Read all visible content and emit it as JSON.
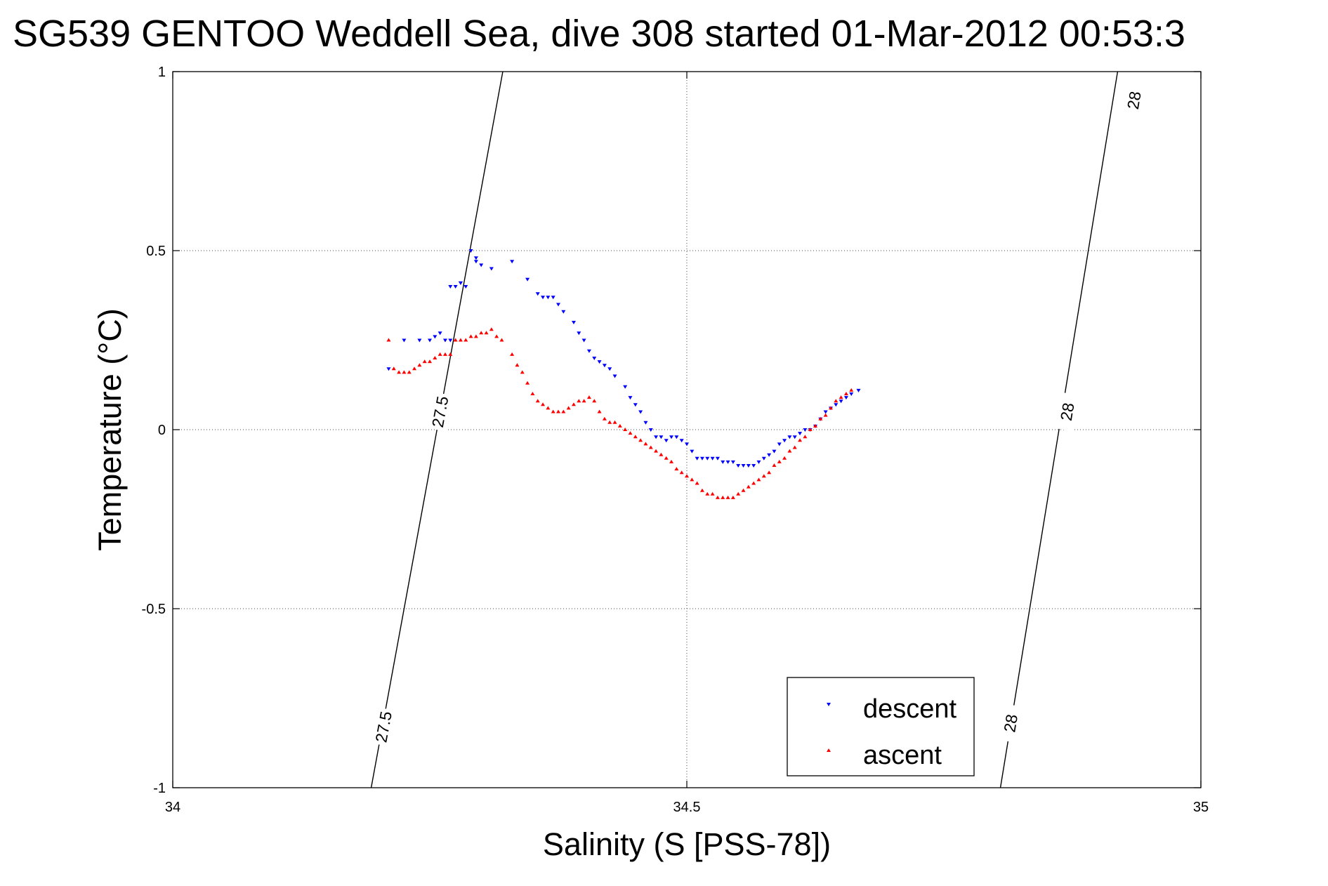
{
  "chart_data": {
    "type": "scatter",
    "title": "SG539 GENTOO Weddell Sea, dive 308 started 01-Mar-2012 00:53:3",
    "xlabel": "Salinity (S [PSS-78])",
    "ylabel": "Temperature (°C)",
    "xlim": [
      34,
      35
    ],
    "ylim": [
      -1,
      1
    ],
    "x_ticks": [
      34,
      34.5,
      35
    ],
    "x_tick_labels": [
      "34",
      "34.5",
      "35"
    ],
    "y_ticks": [
      1,
      0.5,
      0,
      -0.5,
      -1
    ],
    "y_tick_labels": [
      "1",
      "0.5",
      "0",
      "-0.5",
      "-1"
    ],
    "grid": true,
    "legend_position": "bottom-right",
    "legend": [
      "descent",
      "ascent"
    ],
    "isopycnals": [
      {
        "label": "27.5",
        "x_bottom": 34.193,
        "x_top": 34.321,
        "label_positions": [
          [
            34.26,
            0.05
          ],
          [
            34.205,
            -0.83
          ]
        ]
      },
      {
        "label": "28",
        "x_bottom": 34.805,
        "x_top": 34.919,
        "label_positions": [
          [
            34.935,
            0.92
          ],
          [
            34.87,
            0.05
          ],
          [
            34.815,
            -0.82
          ]
        ]
      }
    ],
    "series": [
      {
        "name": "descent",
        "color": "#0000ff",
        "marker": "triangle-down",
        "x": [
          34.21,
          34.225,
          34.24,
          34.25,
          34.255,
          34.26,
          34.265,
          34.27,
          34.275,
          34.28,
          34.285,
          34.29,
          34.295,
          34.27,
          34.28,
          34.295,
          34.3,
          34.31,
          34.33,
          34.345,
          34.355,
          34.36,
          34.365,
          34.37,
          34.375,
          34.38,
          34.39,
          34.395,
          34.4,
          34.405,
          34.41,
          34.415,
          34.42,
          34.425,
          34.43,
          34.44,
          34.445,
          34.45,
          34.455,
          34.46,
          34.465,
          34.47,
          34.475,
          34.48,
          34.485,
          34.49,
          34.495,
          34.5,
          34.505,
          34.51,
          34.515,
          34.52,
          34.525,
          34.53,
          34.535,
          34.54,
          34.545,
          34.55,
          34.555,
          34.56,
          34.565,
          34.57,
          34.575,
          34.58,
          34.585,
          34.59,
          34.595,
          34.6,
          34.605,
          34.61,
          34.615,
          34.62,
          34.625,
          34.63,
          34.635,
          34.64,
          34.645,
          34.65,
          34.655,
          34.66,
          34.667
        ],
        "y": [
          0.17,
          0.25,
          0.25,
          0.25,
          0.26,
          0.27,
          0.25,
          0.25,
          0.4,
          0.41,
          0.4,
          0.5,
          0.48,
          0.4,
          0.41,
          0.47,
          0.46,
          0.45,
          0.47,
          0.42,
          0.38,
          0.37,
          0.37,
          0.37,
          0.35,
          0.33,
          0.3,
          0.27,
          0.25,
          0.22,
          0.2,
          0.19,
          0.18,
          0.17,
          0.15,
          0.12,
          0.09,
          0.07,
          0.05,
          0.02,
          0.0,
          -0.02,
          -0.02,
          -0.03,
          -0.02,
          -0.02,
          -0.03,
          -0.04,
          -0.06,
          -0.08,
          -0.08,
          -0.08,
          -0.08,
          -0.08,
          -0.09,
          -0.09,
          -0.09,
          -0.1,
          -0.1,
          -0.1,
          -0.1,
          -0.09,
          -0.08,
          -0.07,
          -0.06,
          -0.04,
          -0.03,
          -0.02,
          -0.02,
          -0.01,
          0.0,
          0.0,
          0.01,
          0.03,
          0.05,
          0.06,
          0.07,
          0.08,
          0.09,
          0.1,
          0.11
        ]
      },
      {
        "name": "ascent",
        "color": "#ff0000",
        "marker": "triangle-up",
        "x": [
          34.21,
          34.215,
          34.22,
          34.225,
          34.23,
          34.235,
          34.24,
          34.245,
          34.25,
          34.255,
          34.26,
          34.265,
          34.27,
          34.275,
          34.28,
          34.285,
          34.29,
          34.295,
          34.3,
          34.305,
          34.31,
          34.315,
          34.32,
          34.33,
          34.335,
          34.34,
          34.345,
          34.35,
          34.355,
          34.36,
          34.365,
          34.37,
          34.375,
          34.38,
          34.385,
          34.39,
          34.395,
          34.4,
          34.405,
          34.41,
          34.415,
          34.42,
          34.425,
          34.43,
          34.435,
          34.44,
          34.445,
          34.45,
          34.455,
          34.46,
          34.465,
          34.47,
          34.475,
          34.48,
          34.485,
          34.49,
          34.495,
          34.5,
          34.505,
          34.51,
          34.515,
          34.52,
          34.525,
          34.53,
          34.535,
          34.54,
          34.545,
          34.55,
          34.555,
          34.56,
          34.565,
          34.57,
          34.575,
          34.58,
          34.585,
          34.59,
          34.595,
          34.6,
          34.605,
          34.61,
          34.615,
          34.62,
          34.625,
          34.63,
          34.635,
          34.64,
          34.645,
          34.65,
          34.655,
          34.66
        ],
        "y": [
          0.25,
          0.17,
          0.16,
          0.16,
          0.16,
          0.17,
          0.18,
          0.19,
          0.19,
          0.2,
          0.21,
          0.21,
          0.21,
          0.25,
          0.25,
          0.25,
          0.26,
          0.26,
          0.27,
          0.27,
          0.28,
          0.26,
          0.25,
          0.21,
          0.18,
          0.16,
          0.13,
          0.1,
          0.08,
          0.07,
          0.06,
          0.05,
          0.05,
          0.05,
          0.06,
          0.07,
          0.08,
          0.08,
          0.09,
          0.08,
          0.05,
          0.03,
          0.02,
          0.02,
          0.01,
          0.0,
          -0.01,
          -0.02,
          -0.03,
          -0.04,
          -0.05,
          -0.06,
          -0.07,
          -0.08,
          -0.09,
          -0.11,
          -0.12,
          -0.13,
          -0.14,
          -0.15,
          -0.17,
          -0.18,
          -0.18,
          -0.19,
          -0.19,
          -0.19,
          -0.19,
          -0.18,
          -0.17,
          -0.16,
          -0.15,
          -0.14,
          -0.13,
          -0.12,
          -0.1,
          -0.09,
          -0.08,
          -0.06,
          -0.05,
          -0.03,
          -0.02,
          0.0,
          0.01,
          0.03,
          0.04,
          0.06,
          0.08,
          0.09,
          0.1,
          0.11
        ]
      }
    ]
  }
}
